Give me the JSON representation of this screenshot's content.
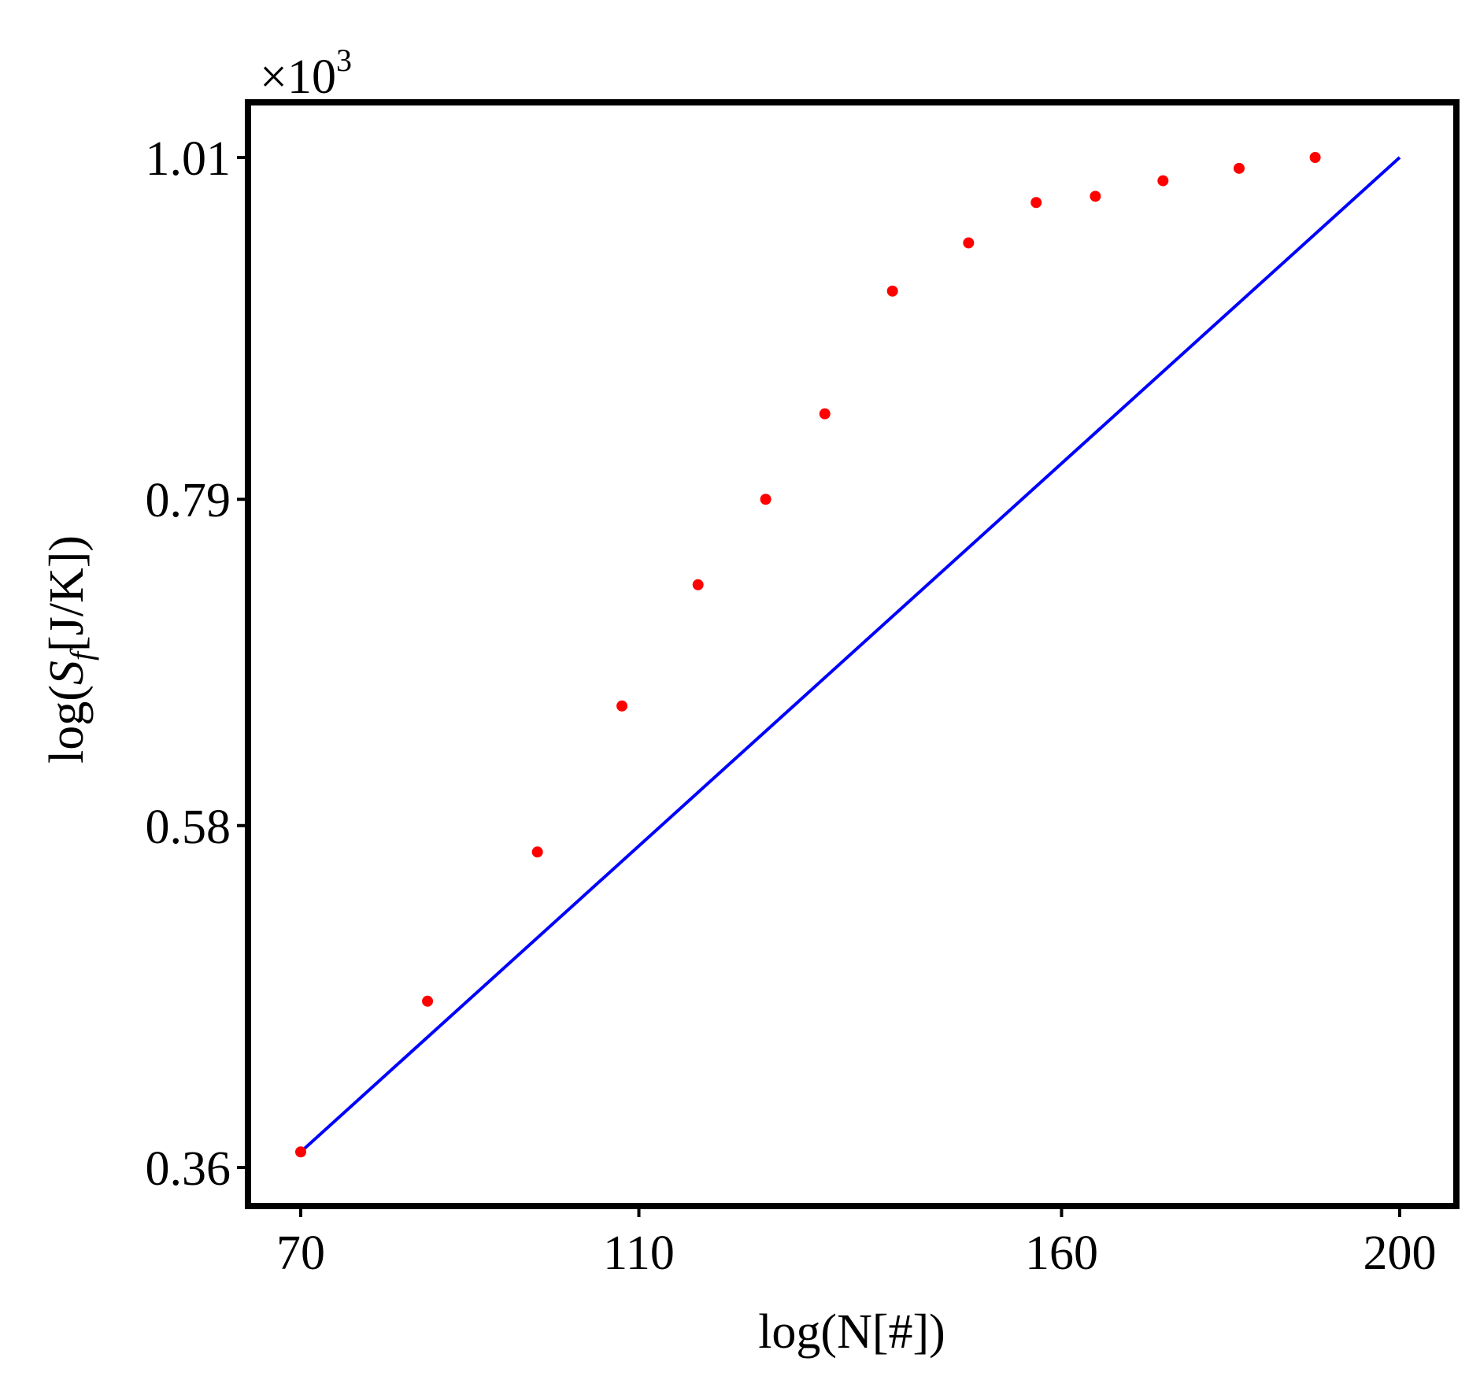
{
  "chart_data": {
    "type": "scatter",
    "title": "",
    "xlabel": "log(N[#])",
    "ylabel_prefix": "log(",
    "ylabel_symbol": "S",
    "ylabel_subscript": "f",
    "ylabel_suffix": "[J/K])",
    "y_multiplier_base": "×10",
    "y_multiplier_exponent": "3",
    "x_ticks": [
      70,
      110,
      160,
      200
    ],
    "x_tick_labels": [
      "70",
      "110",
      "160",
      "200"
    ],
    "y_ticks": [
      0.36,
      0.58,
      0.79,
      1.01
    ],
    "y_tick_labels": [
      "0.36",
      "0.58",
      "0.79",
      "1.01"
    ],
    "xlim": [
      70,
      200
    ],
    "ylim": [
      0.36,
      1.01
    ],
    "grid": false,
    "legend": "none",
    "series": [
      {
        "kind": "points",
        "color": "#ff0000",
        "x": [
          70,
          85,
          98,
          108,
          117,
          125,
          132,
          140,
          149,
          157,
          164,
          172,
          181,
          190
        ],
        "y": [
          0.37,
          0.467,
          0.563,
          0.657,
          0.735,
          0.79,
          0.845,
          0.924,
          0.955,
          0.981,
          0.985,
          0.995,
          1.003,
          1.01
        ]
      },
      {
        "kind": "fit-line",
        "color": "#0000ff",
        "x": [
          70,
          200
        ],
        "y": [
          0.37,
          1.01
        ]
      }
    ]
  }
}
